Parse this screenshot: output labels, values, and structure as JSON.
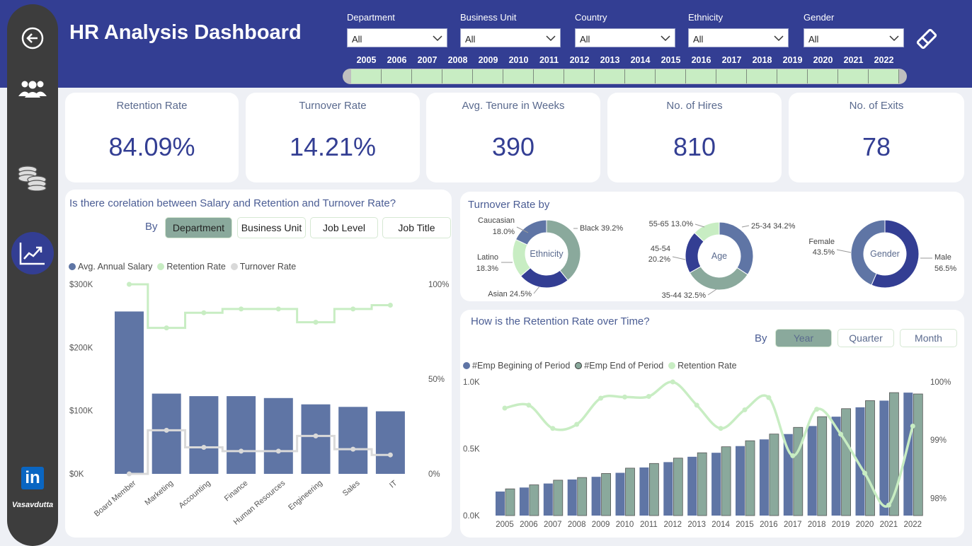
{
  "title": "HR Analysis Dashboard",
  "filters": [
    {
      "label": "Department",
      "value": "All"
    },
    {
      "label": "Business Unit",
      "value": "All"
    },
    {
      "label": "Country",
      "value": "All"
    },
    {
      "label": "Ethnicity",
      "value": "All"
    },
    {
      "label": "Gender",
      "value": "All"
    }
  ],
  "years": [
    "2005",
    "2006",
    "2007",
    "2008",
    "2009",
    "2010",
    "2011",
    "2012",
    "2013",
    "2014",
    "2015",
    "2016",
    "2017",
    "2018",
    "2019",
    "2020",
    "2021",
    "2022"
  ],
  "sidebar": {
    "author": "Vasavdutta",
    "linkedin": "in"
  },
  "kpis": [
    {
      "label": "Retention Rate",
      "value": "84.09%"
    },
    {
      "label": "Turnover Rate",
      "value": "14.21%"
    },
    {
      "label": "Avg. Tenure in Weeks",
      "value": "390"
    },
    {
      "label": "No. of Hires",
      "value": "810"
    },
    {
      "label": "No. of Exits",
      "value": "78"
    }
  ],
  "salary_chart": {
    "title": "Is there corelation between Salary and Retention and Turnover Rate?",
    "by_label": "By",
    "buttons": [
      "Department",
      "Business Unit",
      "Job Level",
      "Job Title"
    ],
    "legend": [
      "Avg. Annual Salary",
      "Retention Rate",
      "Turnover Rate"
    ]
  },
  "turnover_chart": {
    "title": "Turnover Rate by",
    "donuts": [
      {
        "center": "Ethnicity",
        "labels": [
          "Black 39.2%",
          "Caucasian",
          "18.0%",
          "Latino",
          "18.3%",
          "Asian 24.5%"
        ]
      },
      {
        "center": "Age",
        "labels": [
          "25-34 34.2%",
          "55-65 13.0%",
          "45-54",
          "20.2%",
          "35-44 32.5%"
        ]
      },
      {
        "center": "Gender",
        "labels": [
          "Female",
          "43.5%",
          "Male",
          "56.5%"
        ]
      }
    ]
  },
  "retention_chart": {
    "title": "How is the Retention Rate over Time?",
    "by_label": "By",
    "buttons": [
      "Year",
      "Quarter",
      "Month"
    ],
    "legend": [
      "#Emp Begining of Period",
      "#Emp End of Period",
      "Retention Rate"
    ]
  },
  "colors": {
    "header": "#333e93",
    "bar": "#5f75a5",
    "green": "#c8edc3",
    "teal": "#8aa99c",
    "gray": "#d9d9d9"
  },
  "chart_data": [
    {
      "type": "bar",
      "categories": [
        "Board Member",
        "Marketing",
        "Accounting",
        "Finance",
        "Human Resources",
        "Engineering",
        "Sales",
        "IT"
      ],
      "series": [
        {
          "name": "Avg. Annual Salary",
          "values": [
            257000,
            127000,
            123000,
            123000,
            120000,
            110000,
            106000,
            99000
          ]
        },
        {
          "name": "Retention Rate",
          "values": [
            100,
            77,
            85,
            87,
            87,
            80,
            87,
            89
          ]
        },
        {
          "name": "Turnover Rate",
          "values": [
            0,
            23,
            14,
            12,
            12,
            20,
            13,
            10
          ]
        }
      ],
      "y_ticks": [
        "$0K",
        "$100K",
        "$200K",
        "$300K"
      ],
      "y2_ticks": [
        "0%",
        "50%",
        "100%"
      ],
      "ylim": [
        0,
        300000
      ],
      "y2lim": [
        0,
        100
      ]
    },
    {
      "type": "pie",
      "name": "Ethnicity",
      "slices": [
        {
          "label": "Black",
          "value": 39.2
        },
        {
          "label": "Asian",
          "value": 24.5
        },
        {
          "label": "Latino",
          "value": 18.3
        },
        {
          "label": "Caucasian",
          "value": 18.0
        }
      ],
      "colors": [
        "#8aa99c",
        "#333e93",
        "#c8edc3",
        "#5f75a5"
      ]
    },
    {
      "type": "pie",
      "name": "Age",
      "slices": [
        {
          "label": "25-34",
          "value": 34.2
        },
        {
          "label": "35-44",
          "value": 32.5
        },
        {
          "label": "45-54",
          "value": 20.2
        },
        {
          "label": "55-65",
          "value": 13.0
        }
      ],
      "colors": [
        "#5f75a5",
        "#8aa99c",
        "#333e93",
        "#c8edc3"
      ]
    },
    {
      "type": "pie",
      "name": "Gender",
      "slices": [
        {
          "label": "Male",
          "value": 56.5
        },
        {
          "label": "Female",
          "value": 43.5
        }
      ],
      "colors": [
        "#333e93",
        "#5f75a5"
      ]
    },
    {
      "type": "bar",
      "categories": [
        "2005",
        "2006",
        "2007",
        "2008",
        "2009",
        "2010",
        "2011",
        "2012",
        "2013",
        "2014",
        "2015",
        "2016",
        "2017",
        "2018",
        "2019",
        "2020",
        "2021",
        "2022"
      ],
      "series": [
        {
          "name": "#Emp Begining of Period",
          "values": [
            180,
            210,
            240,
            270,
            290,
            320,
            360,
            400,
            440,
            470,
            520,
            570,
            610,
            670,
            740,
            810,
            860,
            920
          ]
        },
        {
          "name": "#Emp End of Period",
          "values": [
            200,
            230,
            265,
            285,
            315,
            355,
            390,
            430,
            470,
            515,
            560,
            610,
            660,
            740,
            800,
            860,
            920,
            910
          ]
        },
        {
          "name": "Retention Rate",
          "values": [
            99.55,
            99.6,
            99.2,
            99.27,
            99.72,
            99.74,
            99.75,
            100.0,
            99.6,
            99.2,
            99.52,
            99.73,
            98.73,
            99.53,
            99.1,
            98.43,
            97.88,
            99.24
          ]
        }
      ],
      "y_ticks": [
        "0.0K",
        "0.5K",
        "1.0K"
      ],
      "y2_ticks": [
        "98%",
        "99%",
        "100%"
      ],
      "ylim": [
        0,
        1000
      ],
      "y2lim": [
        97.7,
        100.0
      ]
    }
  ]
}
